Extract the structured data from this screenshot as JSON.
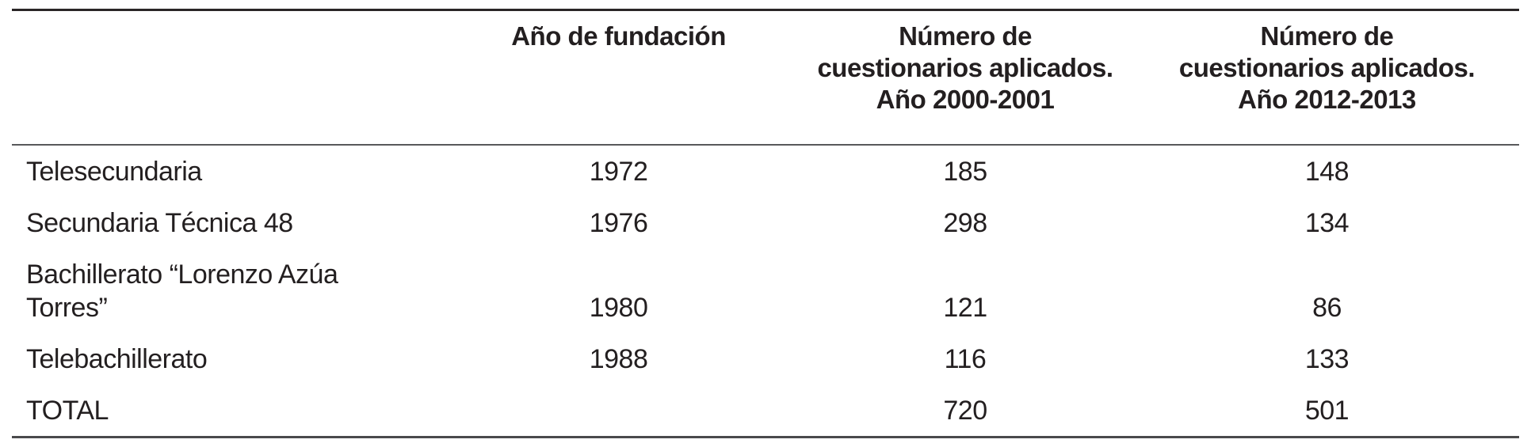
{
  "table": {
    "columns": {
      "school_header": "",
      "founded_header": "Año de fundación",
      "q2000_header": "Número de\ncuestionarios aplicados.\nAño 2000-2001",
      "q2012_header": "Número de\ncuestionarios aplicados.\nAño 2012-2013"
    },
    "rows": [
      {
        "name": "Telesecundaria",
        "founded": "1972",
        "q2000": "185",
        "q2012": "148"
      },
      {
        "name": "Secundaria Técnica 48",
        "founded": "1976",
        "q2000": "298",
        "q2012": "134"
      },
      {
        "name": "Bachillerato “Lorenzo Azúa\nTorres”",
        "founded": "1980",
        "q2000": "121",
        "q2012": "86"
      },
      {
        "name": "Telebachillerato",
        "founded": "1988",
        "q2000": "116",
        "q2012": "133"
      },
      {
        "name": "TOTAL",
        "founded": "",
        "q2000": "720",
        "q2012": "501"
      }
    ]
  },
  "chart_data": {
    "type": "table",
    "columns": [
      "",
      "Año de fundación",
      "Número de cuestionarios aplicados. Año 2000-2001",
      "Número de cuestionarios aplicados. Año 2012-2013"
    ],
    "rows": [
      [
        "Telesecundaria",
        1972,
        185,
        148
      ],
      [
        "Secundaria Técnica 48",
        1976,
        298,
        134
      ],
      [
        "Bachillerato “Lorenzo Azúa Torres”",
        1980,
        121,
        86
      ],
      [
        "Telebachillerato",
        1988,
        116,
        133
      ],
      [
        "TOTAL",
        null,
        720,
        501
      ]
    ]
  },
  "colors": {
    "text": "#231f20",
    "rule_top": "#2a2627",
    "rule_header": "#58595b",
    "rule_bottom": "#4a4a4c",
    "background": "#ffffff"
  }
}
